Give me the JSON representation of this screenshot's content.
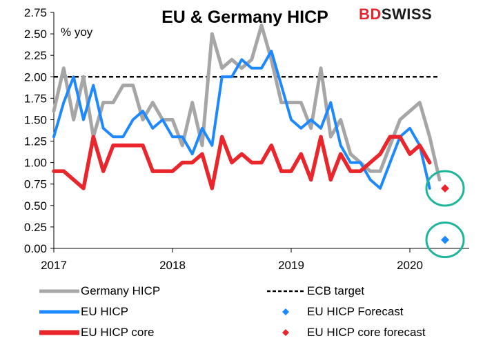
{
  "logo": {
    "part1": "BD",
    "part2": "SWISS"
  },
  "colors": {
    "germany": "#a6a6a6",
    "eu": "#1e88ff",
    "core": "#e8262b",
    "target": "#000000",
    "circle": "#1fb59a"
  },
  "chart_data": {
    "type": "line",
    "title": "EU & Germany HICP",
    "ylabel": "% yoy",
    "xlabel": "",
    "ylim": [
      0,
      2.75
    ],
    "yticks": [
      "0.00",
      "0.25",
      "0.50",
      "0.75",
      "1.00",
      "1.25",
      "1.50",
      "1.75",
      "2.00",
      "2.25",
      "2.50",
      "2.75"
    ],
    "xticks": [
      "2017",
      "2018",
      "2019",
      "2020"
    ],
    "grid": false,
    "legend_position": "bottom",
    "x": [
      "2017-01",
      "2017-02",
      "2017-03",
      "2017-04",
      "2017-05",
      "2017-06",
      "2017-07",
      "2017-08",
      "2017-09",
      "2017-10",
      "2017-11",
      "2017-12",
      "2018-01",
      "2018-02",
      "2018-03",
      "2018-04",
      "2018-05",
      "2018-06",
      "2018-07",
      "2018-08",
      "2018-09",
      "2018-10",
      "2018-11",
      "2018-12",
      "2019-01",
      "2019-02",
      "2019-03",
      "2019-04",
      "2019-05",
      "2019-06",
      "2019-07",
      "2019-08",
      "2019-09",
      "2019-10",
      "2019-11",
      "2019-12",
      "2020-01",
      "2020-02",
      "2020-03",
      "2020-04"
    ],
    "series": [
      {
        "name": "Germany HICP",
        "values": [
          1.6,
          2.1,
          1.5,
          2.0,
          1.3,
          1.7,
          1.7,
          1.9,
          1.9,
          1.5,
          1.7,
          1.5,
          1.5,
          1.2,
          1.7,
          1.2,
          2.5,
          2.1,
          2.2,
          2.1,
          2.2,
          2.6,
          2.2,
          1.7,
          1.7,
          1.7,
          1.4,
          2.1,
          1.3,
          1.5,
          1.1,
          1.0,
          0.9,
          0.9,
          1.2,
          1.5,
          1.6,
          1.7,
          1.3,
          0.8
        ]
      },
      {
        "name": "EU HICP",
        "values": [
          1.3,
          1.7,
          2.0,
          1.5,
          1.9,
          1.4,
          1.3,
          1.3,
          1.5,
          1.6,
          1.4,
          1.5,
          1.3,
          1.3,
          1.1,
          1.4,
          1.2,
          2.0,
          2.0,
          2.2,
          2.1,
          2.1,
          2.3,
          1.9,
          1.5,
          1.4,
          1.5,
          1.4,
          1.7,
          1.2,
          1.0,
          1.0,
          0.8,
          0.7,
          1.0,
          1.3,
          1.4,
          1.2,
          0.7,
          null
        ]
      },
      {
        "name": "EU HICP core",
        "values": [
          0.9,
          0.9,
          0.8,
          0.7,
          1.3,
          0.9,
          1.2,
          1.2,
          1.2,
          1.2,
          0.9,
          0.9,
          0.9,
          1.0,
          1.0,
          1.1,
          0.7,
          1.3,
          1.0,
          1.1,
          1.0,
          1.0,
          1.2,
          0.9,
          0.9,
          1.1,
          0.8,
          1.3,
          0.8,
          1.1,
          0.9,
          0.9,
          1.0,
          1.1,
          1.3,
          1.3,
          1.1,
          1.2,
          1.0,
          null
        ]
      }
    ],
    "reference_line": {
      "name": "ECB target",
      "value": 2.0
    },
    "forecasts": [
      {
        "name": "EU HICP Forecast",
        "x": "2020-04",
        "value": 0.1
      },
      {
        "name": "EU HICP core forecast",
        "x": "2020-04",
        "value": 0.7
      }
    ]
  }
}
